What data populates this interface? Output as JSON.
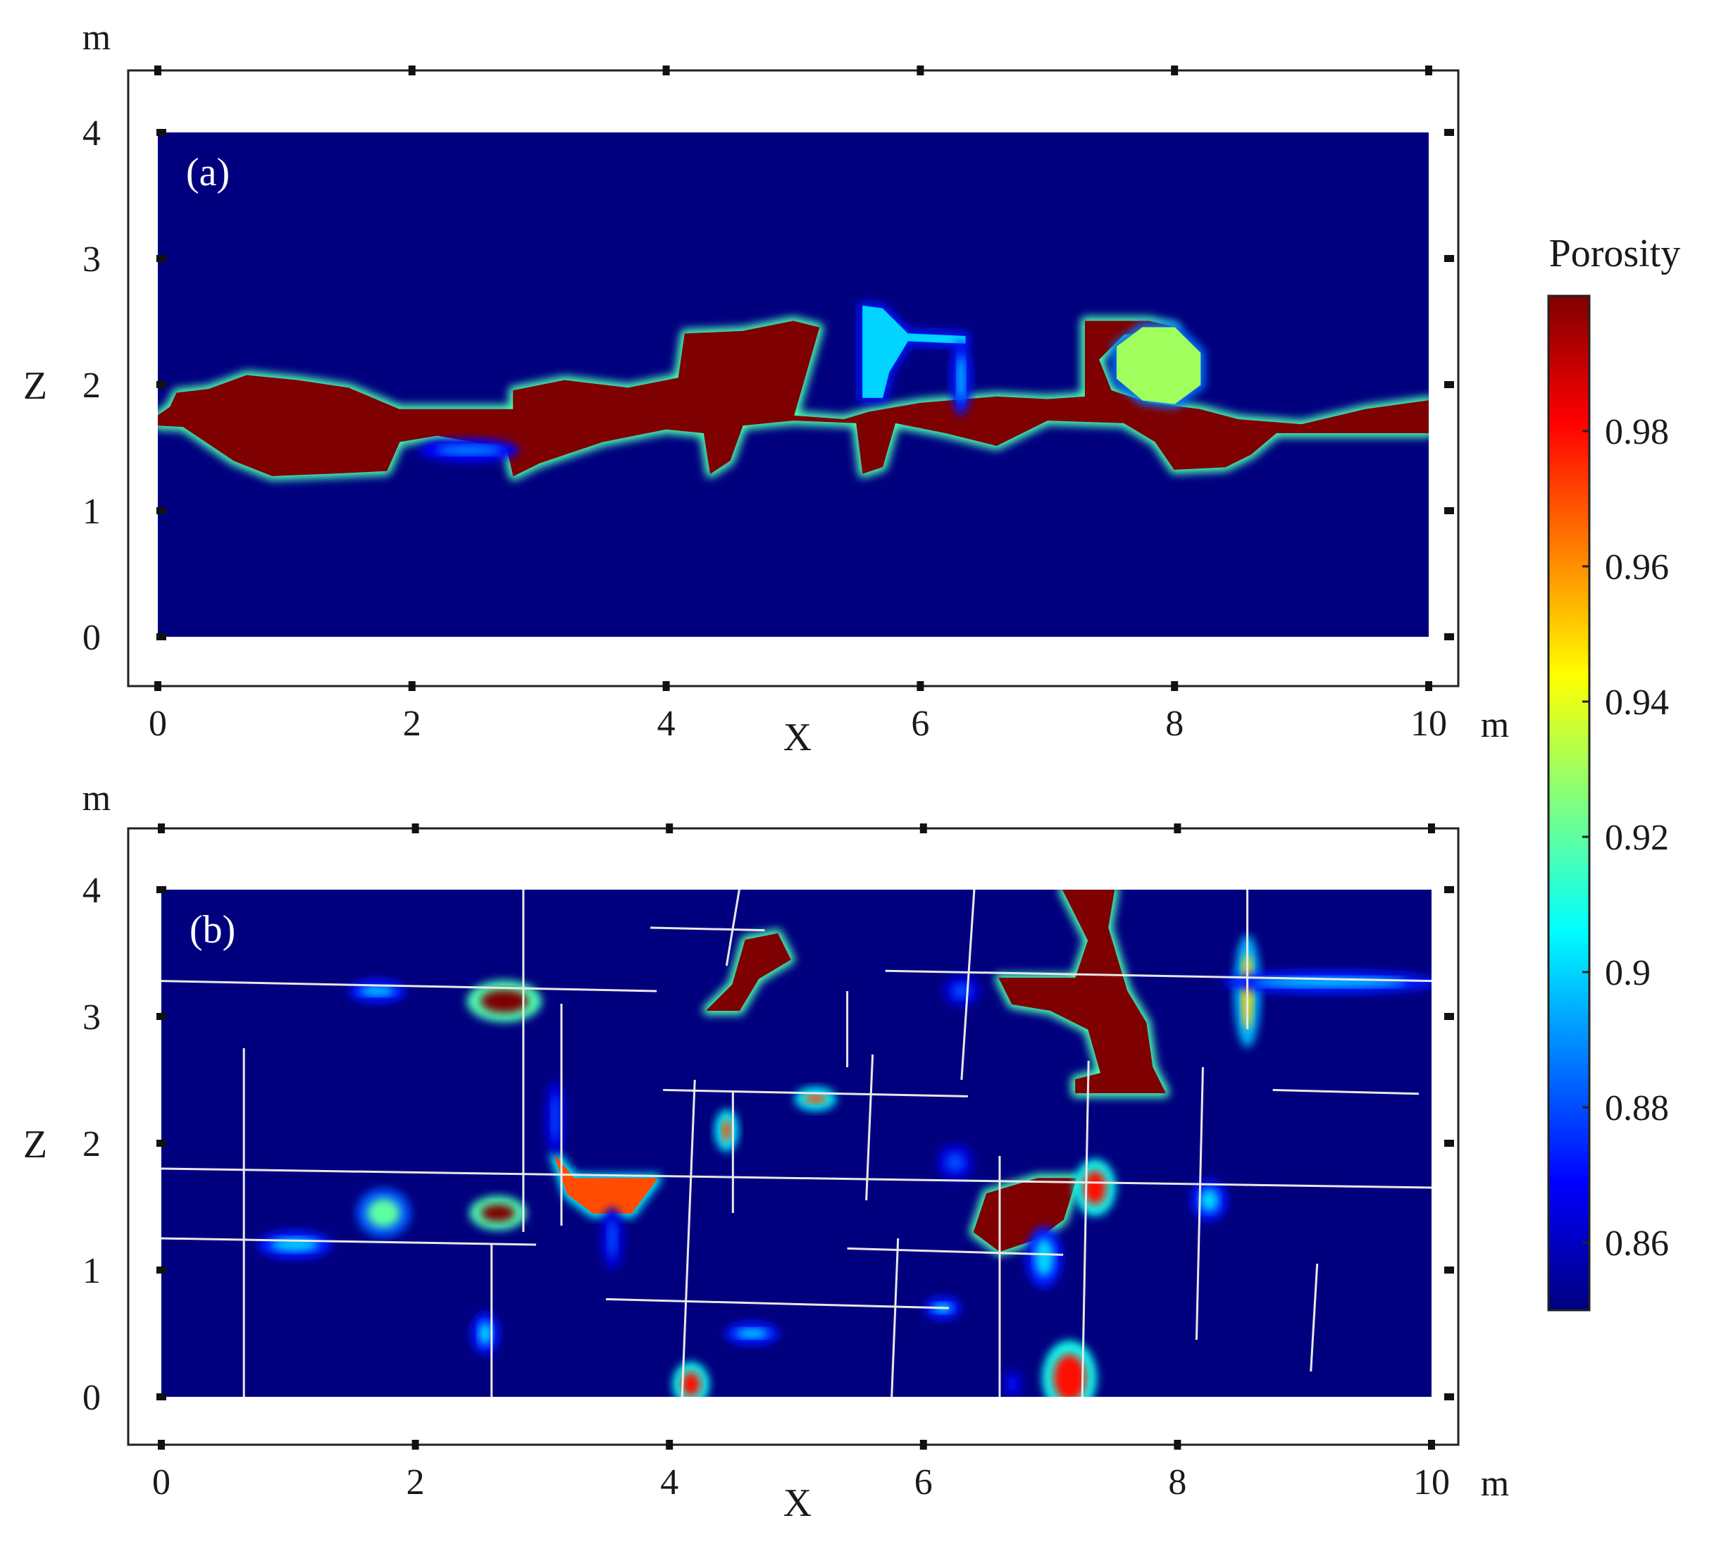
{
  "chart_data": [
    {
      "type": "heatmap",
      "panel_label": "(a)",
      "xlabel": "X",
      "ylabel": "Z",
      "x_unit": "m",
      "y_unit": "m",
      "xlim": [
        0,
        10
      ],
      "ylim": [
        0,
        4
      ],
      "xticks": [
        0,
        2,
        4,
        6,
        8,
        10
      ],
      "yticks": [
        0,
        1,
        2,
        3,
        4
      ],
      "background_porosity": 0.85,
      "high_porosity_zones": [
        {
          "shape": "polygon",
          "porosity": 1.0,
          "points": [
            [
              0.0,
              1.75
            ],
            [
              0.1,
              1.82
            ],
            [
              0.15,
              1.93
            ],
            [
              0.4,
              1.96
            ],
            [
              0.7,
              2.07
            ],
            [
              1.1,
              2.03
            ],
            [
              1.5,
              1.97
            ],
            [
              1.9,
              1.8
            ],
            [
              2.8,
              1.8
            ],
            [
              2.8,
              1.95
            ],
            [
              3.2,
              2.03
            ],
            [
              3.7,
              1.97
            ],
            [
              4.1,
              2.05
            ],
            [
              4.15,
              2.4
            ],
            [
              4.6,
              2.42
            ],
            [
              5.0,
              2.5
            ],
            [
              5.2,
              2.45
            ],
            [
              5.1,
              2.1
            ],
            [
              5.0,
              1.75
            ],
            [
              5.4,
              1.72
            ],
            [
              5.6,
              1.78
            ],
            [
              6.0,
              1.85
            ],
            [
              6.6,
              1.9
            ],
            [
              7.0,
              1.88
            ],
            [
              7.3,
              1.9
            ],
            [
              7.3,
              2.5
            ],
            [
              7.8,
              2.5
            ],
            [
              8.0,
              2.45
            ],
            [
              7.6,
              2.4
            ],
            [
              7.4,
              2.2
            ],
            [
              7.5,
              1.95
            ],
            [
              7.8,
              1.85
            ],
            [
              8.2,
              1.8
            ],
            [
              8.5,
              1.72
            ],
            [
              9.0,
              1.68
            ],
            [
              9.5,
              1.8
            ],
            [
              10.0,
              1.87
            ],
            [
              10.0,
              1.62
            ],
            [
              9.4,
              1.62
            ],
            [
              8.8,
              1.62
            ],
            [
              8.6,
              1.45
            ],
            [
              8.4,
              1.35
            ],
            [
              8.0,
              1.33
            ],
            [
              7.85,
              1.55
            ],
            [
              7.6,
              1.7
            ],
            [
              7.0,
              1.72
            ],
            [
              6.6,
              1.52
            ],
            [
              6.2,
              1.62
            ],
            [
              5.8,
              1.7
            ],
            [
              5.7,
              1.35
            ],
            [
              5.55,
              1.3
            ],
            [
              5.5,
              1.7
            ],
            [
              5.0,
              1.72
            ],
            [
              4.6,
              1.68
            ],
            [
              4.5,
              1.4
            ],
            [
              4.35,
              1.3
            ],
            [
              4.3,
              1.62
            ],
            [
              4.0,
              1.65
            ],
            [
              3.5,
              1.55
            ],
            [
              3.0,
              1.38
            ],
            [
              2.8,
              1.28
            ],
            [
              2.75,
              1.5
            ],
            [
              2.2,
              1.6
            ],
            [
              1.9,
              1.55
            ],
            [
              1.8,
              1.32
            ],
            [
              1.4,
              1.3
            ],
            [
              0.9,
              1.28
            ],
            [
              0.6,
              1.4
            ],
            [
              0.2,
              1.67
            ],
            [
              0.0,
              1.68
            ]
          ]
        },
        {
          "shape": "polygon",
          "porosity": 0.9,
          "points": [
            [
              5.55,
              2.62
            ],
            [
              5.7,
              2.6
            ],
            [
              5.9,
              2.4
            ],
            [
              6.35,
              2.38
            ],
            [
              6.35,
              2.33
            ],
            [
              5.9,
              2.35
            ],
            [
              5.75,
              2.1
            ],
            [
              5.7,
              1.9
            ],
            [
              5.55,
              1.9
            ]
          ]
        },
        {
          "shape": "polygon",
          "porosity": 0.93,
          "points": [
            [
              7.75,
              2.45
            ],
            [
              8.0,
              2.45
            ],
            [
              8.2,
              2.25
            ],
            [
              8.2,
              2.0
            ],
            [
              8.0,
              1.85
            ],
            [
              7.75,
              1.88
            ],
            [
              7.55,
              2.05
            ],
            [
              7.55,
              2.3
            ]
          ]
        },
        {
          "shape": "ellipse",
          "porosity": 0.89,
          "cx": 2.45,
          "cy": 1.48,
          "rx": 0.35,
          "ry": 0.05
        },
        {
          "shape": "ellipse",
          "porosity": 0.9,
          "cx": 6.32,
          "cy": 2.05,
          "rx": 0.04,
          "ry": 0.25
        }
      ],
      "fractures": []
    },
    {
      "type": "heatmap",
      "panel_label": "(b)",
      "xlabel": "X",
      "ylabel": "Z",
      "x_unit": "m",
      "y_unit": "m",
      "xlim": [
        0,
        10
      ],
      "ylim": [
        0,
        4
      ],
      "xticks": [
        0,
        2,
        4,
        6,
        8,
        10
      ],
      "yticks": [
        0,
        1,
        2,
        3,
        4
      ],
      "background_porosity": 0.85,
      "high_porosity_zones": [
        {
          "shape": "polygon",
          "porosity": 1.0,
          "points": [
            [
              7.1,
              4.0
            ],
            [
              7.5,
              4.0
            ],
            [
              7.45,
              3.7
            ],
            [
              7.6,
              3.2
            ],
            [
              7.75,
              2.95
            ],
            [
              7.8,
              2.6
            ],
            [
              7.9,
              2.4
            ],
            [
              7.2,
              2.4
            ],
            [
              7.2,
              2.5
            ],
            [
              7.4,
              2.55
            ],
            [
              7.3,
              2.9
            ],
            [
              7.0,
              3.05
            ],
            [
              6.7,
              3.1
            ],
            [
              6.6,
              3.3
            ],
            [
              7.2,
              3.3
            ],
            [
              7.3,
              3.6
            ]
          ]
        },
        {
          "shape": "polygon",
          "porosity": 1.0,
          "points": [
            [
              6.5,
              1.6
            ],
            [
              6.9,
              1.72
            ],
            [
              7.2,
              1.72
            ],
            [
              7.1,
              1.4
            ],
            [
              6.9,
              1.25
            ],
            [
              6.6,
              1.15
            ],
            [
              6.4,
              1.3
            ]
          ]
        },
        {
          "shape": "polygon",
          "porosity": 1.0,
          "points": [
            [
              4.3,
              3.05
            ],
            [
              4.5,
              3.25
            ],
            [
              4.6,
              3.6
            ],
            [
              4.85,
              3.65
            ],
            [
              4.95,
              3.45
            ],
            [
              4.7,
              3.3
            ],
            [
              4.55,
              3.05
            ]
          ]
        },
        {
          "shape": "polygon",
          "porosity": 0.97,
          "points": [
            [
              3.1,
              1.9
            ],
            [
              3.25,
              1.72
            ],
            [
              3.9,
              1.72
            ],
            [
              3.7,
              1.45
            ],
            [
              3.4,
              1.45
            ],
            [
              3.2,
              1.6
            ]
          ]
        },
        {
          "shape": "ellipse",
          "porosity": 1.0,
          "cx": 2.7,
          "cy": 3.12,
          "rx": 0.25,
          "ry": 0.12
        },
        {
          "shape": "ellipse",
          "porosity": 1.0,
          "cx": 2.65,
          "cy": 1.45,
          "rx": 0.18,
          "ry": 0.09
        },
        {
          "shape": "ellipse",
          "porosity": 0.98,
          "cx": 7.35,
          "cy": 1.65,
          "rx": 0.12,
          "ry": 0.18
        },
        {
          "shape": "ellipse",
          "porosity": 0.98,
          "cx": 7.15,
          "cy": 0.15,
          "rx": 0.17,
          "ry": 0.25
        },
        {
          "shape": "ellipse",
          "porosity": 0.98,
          "cx": 4.17,
          "cy": 0.1,
          "rx": 0.1,
          "ry": 0.13
        },
        {
          "shape": "ellipse",
          "porosity": 0.95,
          "cx": 8.55,
          "cy": 3.2,
          "rx": 0.06,
          "ry": 0.4
        },
        {
          "shape": "ellipse",
          "porosity": 0.97,
          "cx": 4.45,
          "cy": 2.1,
          "rx": 0.05,
          "ry": 0.12
        },
        {
          "shape": "ellipse",
          "porosity": 0.97,
          "cx": 5.15,
          "cy": 2.35,
          "rx": 0.12,
          "ry": 0.05
        },
        {
          "shape": "ellipse",
          "porosity": 0.92,
          "cx": 1.75,
          "cy": 1.45,
          "rx": 0.17,
          "ry": 0.15
        },
        {
          "shape": "ellipse",
          "porosity": 0.9,
          "cx": 1.05,
          "cy": 1.2,
          "rx": 0.25,
          "ry": 0.07
        },
        {
          "shape": "ellipse",
          "porosity": 0.9,
          "cx": 9.2,
          "cy": 3.27,
          "rx": 0.8,
          "ry": 0.05
        },
        {
          "shape": "ellipse",
          "porosity": 0.9,
          "cx": 1.7,
          "cy": 3.2,
          "rx": 0.18,
          "ry": 0.05
        },
        {
          "shape": "ellipse",
          "porosity": 0.9,
          "cx": 4.65,
          "cy": 0.5,
          "rx": 0.17,
          "ry": 0.05
        },
        {
          "shape": "ellipse",
          "porosity": 0.9,
          "cx": 6.15,
          "cy": 0.7,
          "rx": 0.1,
          "ry": 0.05
        },
        {
          "shape": "ellipse",
          "porosity": 0.9,
          "cx": 6.95,
          "cy": 1.1,
          "rx": 0.1,
          "ry": 0.2
        },
        {
          "shape": "ellipse",
          "porosity": 0.9,
          "cx": 8.25,
          "cy": 1.55,
          "rx": 0.1,
          "ry": 0.12
        },
        {
          "shape": "ellipse",
          "porosity": 0.9,
          "cx": 2.55,
          "cy": 0.5,
          "rx": 0.07,
          "ry": 0.12
        },
        {
          "shape": "ellipse",
          "porosity": 0.88,
          "cx": 3.55,
          "cy": 1.25,
          "rx": 0.05,
          "ry": 0.2
        },
        {
          "shape": "ellipse",
          "porosity": 0.88,
          "cx": 6.25,
          "cy": 1.85,
          "rx": 0.1,
          "ry": 0.1
        },
        {
          "shape": "ellipse",
          "porosity": 0.88,
          "cx": 6.3,
          "cy": 3.2,
          "rx": 0.1,
          "ry": 0.08
        },
        {
          "shape": "ellipse",
          "porosity": 0.87,
          "cx": 6.7,
          "cy": 0.1,
          "rx": 0.05,
          "ry": 0.08
        },
        {
          "shape": "ellipse",
          "porosity": 0.88,
          "cx": 3.1,
          "cy": 2.2,
          "rx": 0.04,
          "ry": 0.25
        }
      ],
      "fractures": [
        [
          [
            0.0,
            3.28
          ],
          [
            3.9,
            3.2
          ]
        ],
        [
          [
            0.0,
            1.8
          ],
          [
            10.0,
            1.65
          ]
        ],
        [
          [
            0.0,
            1.25
          ],
          [
            2.95,
            1.2
          ]
        ],
        [
          [
            3.5,
            0.77
          ],
          [
            6.2,
            0.7
          ]
        ],
        [
          [
            3.85,
            3.7
          ],
          [
            4.75,
            3.68
          ]
        ],
        [
          [
            3.95,
            2.42
          ],
          [
            6.35,
            2.37
          ]
        ],
        [
          [
            5.4,
            1.17
          ],
          [
            7.1,
            1.12
          ]
        ],
        [
          [
            5.7,
            3.36
          ],
          [
            10.0,
            3.28
          ]
        ],
        [
          [
            8.75,
            2.42
          ],
          [
            9.9,
            2.39
          ]
        ],
        [
          [
            0.65,
            2.75
          ],
          [
            0.65,
            0.0
          ]
        ],
        [
          [
            2.85,
            4.0
          ],
          [
            2.85,
            1.3
          ]
        ],
        [
          [
            3.15,
            3.1
          ],
          [
            3.15,
            1.35
          ]
        ],
        [
          [
            2.6,
            1.2
          ],
          [
            2.6,
            0.0
          ]
        ],
        [
          [
            4.55,
            4.0
          ],
          [
            4.45,
            3.4
          ]
        ],
        [
          [
            4.2,
            2.5
          ],
          [
            4.1,
            0.0
          ]
        ],
        [
          [
            4.5,
            2.4
          ],
          [
            4.5,
            1.45
          ]
        ],
        [
          [
            5.4,
            3.2
          ],
          [
            5.4,
            2.6
          ]
        ],
        [
          [
            5.6,
            2.7
          ],
          [
            5.55,
            1.55
          ]
        ],
        [
          [
            5.8,
            1.25
          ],
          [
            5.75,
            0.0
          ]
        ],
        [
          [
            6.4,
            4.0
          ],
          [
            6.3,
            2.5
          ]
        ],
        [
          [
            6.6,
            1.9
          ],
          [
            6.6,
            0.0
          ]
        ],
        [
          [
            7.3,
            2.65
          ],
          [
            7.25,
            0.0
          ]
        ],
        [
          [
            8.2,
            2.6
          ],
          [
            8.15,
            0.45
          ]
        ],
        [
          [
            8.55,
            4.0
          ],
          [
            8.55,
            2.9
          ]
        ],
        [
          [
            9.1,
            1.05
          ],
          [
            9.05,
            0.2
          ]
        ]
      ]
    }
  ],
  "colorbar": {
    "title": "Porosity",
    "min": 0.85,
    "max": 1.0,
    "ticks": [
      0.86,
      0.88,
      0.9,
      0.92,
      0.94,
      0.96,
      0.98
    ],
    "tick_labels": [
      "0.86",
      "0.88",
      "0.9",
      "0.92",
      "0.94",
      "0.96",
      "0.98"
    ],
    "colormap": "jet",
    "stops": [
      "#00007f",
      "#0000ff",
      "#007fff",
      "#00ffff",
      "#7fff7f",
      "#ffff00",
      "#ff7f00",
      "#ff0000",
      "#7f0000"
    ]
  }
}
